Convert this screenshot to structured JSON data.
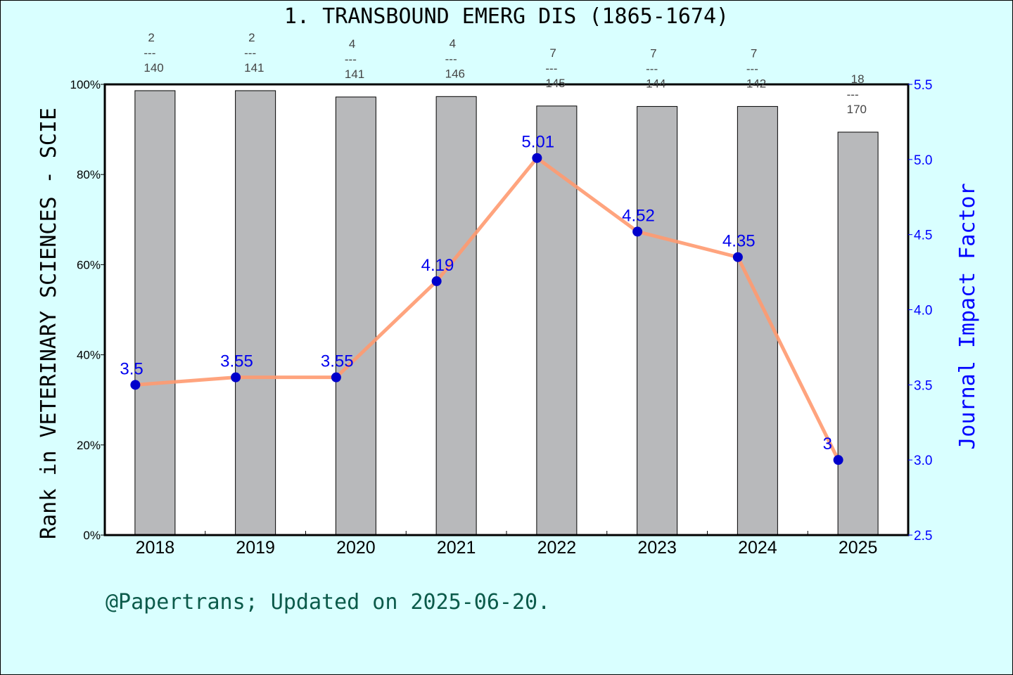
{
  "chart_data": {
    "type": "bar+line",
    "title": "1. TRANSBOUND EMERG DIS (1865-1674)",
    "categories": [
      "2018",
      "2019",
      "2020",
      "2021",
      "2022",
      "2023",
      "2024",
      "2025"
    ],
    "bars": {
      "ylabel": "Rank in VETERINARY SCIENCES - SCIE",
      "ylim": [
        0,
        100
      ],
      "yticks": [
        "0%",
        "20%",
        "40%",
        "60%",
        "80%",
        "100%"
      ],
      "rank": [
        2,
        2,
        4,
        4,
        7,
        7,
        7,
        18
      ],
      "total": [
        140,
        141,
        141,
        146,
        145,
        144,
        142,
        170
      ],
      "values": [
        98.6,
        98.6,
        97.2,
        97.3,
        95.2,
        95.1,
        95.1,
        89.4
      ],
      "color": "#b8b9bb"
    },
    "line": {
      "ylabel": "Journal Impact Factor",
      "ylim": [
        2.5,
        5.5
      ],
      "yticks": [
        "2.5",
        "3.0",
        "3.5",
        "4.0",
        "4.5",
        "5.0",
        "5.5"
      ],
      "values": [
        3.5,
        3.55,
        3.55,
        4.19,
        5.01,
        4.52,
        4.35,
        3
      ],
      "labels": [
        "3.5",
        "3.55",
        "3.55",
        "4.19",
        "5.01",
        "4.52",
        "4.35",
        "3"
      ],
      "line_color": "#ff9a70",
      "marker_color": "#0000cc",
      "axis_color": "#0000ff"
    },
    "grid": false
  },
  "footer": "@Papertrans; Updated on 2025-06-20."
}
